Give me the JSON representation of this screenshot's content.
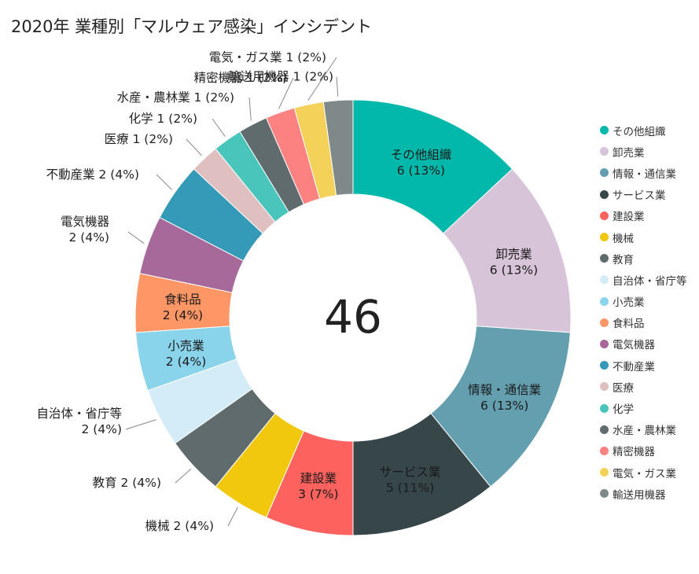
{
  "chart_data": {
    "type": "pie",
    "title": "2020年 業種別「マルウェア感染」インシデント",
    "center_text": "46",
    "legend_position": "right",
    "slices": [
      {
        "label": "その他組織",
        "value": 6,
        "percent_label": "6 (13%)",
        "color": "#01b8aa"
      },
      {
        "label": "卸売業",
        "value": 6,
        "percent_label": "6 (13%)",
        "color": "#d8c4d8"
      },
      {
        "label": "情報・通信業",
        "value": 6,
        "percent_label": "6 (13%)",
        "color": "#649faf"
      },
      {
        "label": "サービス業",
        "value": 5,
        "percent_label": "5 (11%)",
        "color": "#374649"
      },
      {
        "label": "建設業",
        "value": 3,
        "percent_label": "3 (7%)",
        "color": "#fd625e"
      },
      {
        "label": "機械",
        "value": 2,
        "percent_label": "2 (4%)",
        "color": "#f2c80f"
      },
      {
        "label": "教育",
        "value": 2,
        "percent_label": "2 (4%)",
        "color": "#5f6b6d"
      },
      {
        "label": "自治体・省庁等",
        "value": 2,
        "percent_label": "2 (4%)",
        "color": "#d4ecf7"
      },
      {
        "label": "小売業",
        "value": 2,
        "percent_label": "2 (4%)",
        "color": "#8ad4eb"
      },
      {
        "label": "食料品",
        "value": 2,
        "percent_label": "2 (4%)",
        "color": "#fe9666"
      },
      {
        "label": "電気機器",
        "value": 2,
        "percent_label": "2 (4%)",
        "color": "#a66999"
      },
      {
        "label": "不動産業",
        "value": 2,
        "percent_label": "2 (4%)",
        "color": "#3599b8"
      },
      {
        "label": "医療",
        "value": 1,
        "percent_label": "1 (2%)",
        "color": "#dfbfbf"
      },
      {
        "label": "化学",
        "value": 1,
        "percent_label": "1 (2%)",
        "color": "#4ac5bb"
      },
      {
        "label": "水産・農林業",
        "value": 1,
        "percent_label": "1 (2%)",
        "color": "#5f6b6d"
      },
      {
        "label": "精密機器",
        "value": 1,
        "percent_label": "1 (2%)",
        "color": "#fb8281"
      },
      {
        "label": "電気・ガス業",
        "value": 1,
        "percent_label": "1 (2%)",
        "color": "#f4d25a"
      },
      {
        "label": "輸送用機器",
        "value": 1,
        "percent_label": "1 (2%)",
        "color": "#7f898a"
      }
    ]
  }
}
